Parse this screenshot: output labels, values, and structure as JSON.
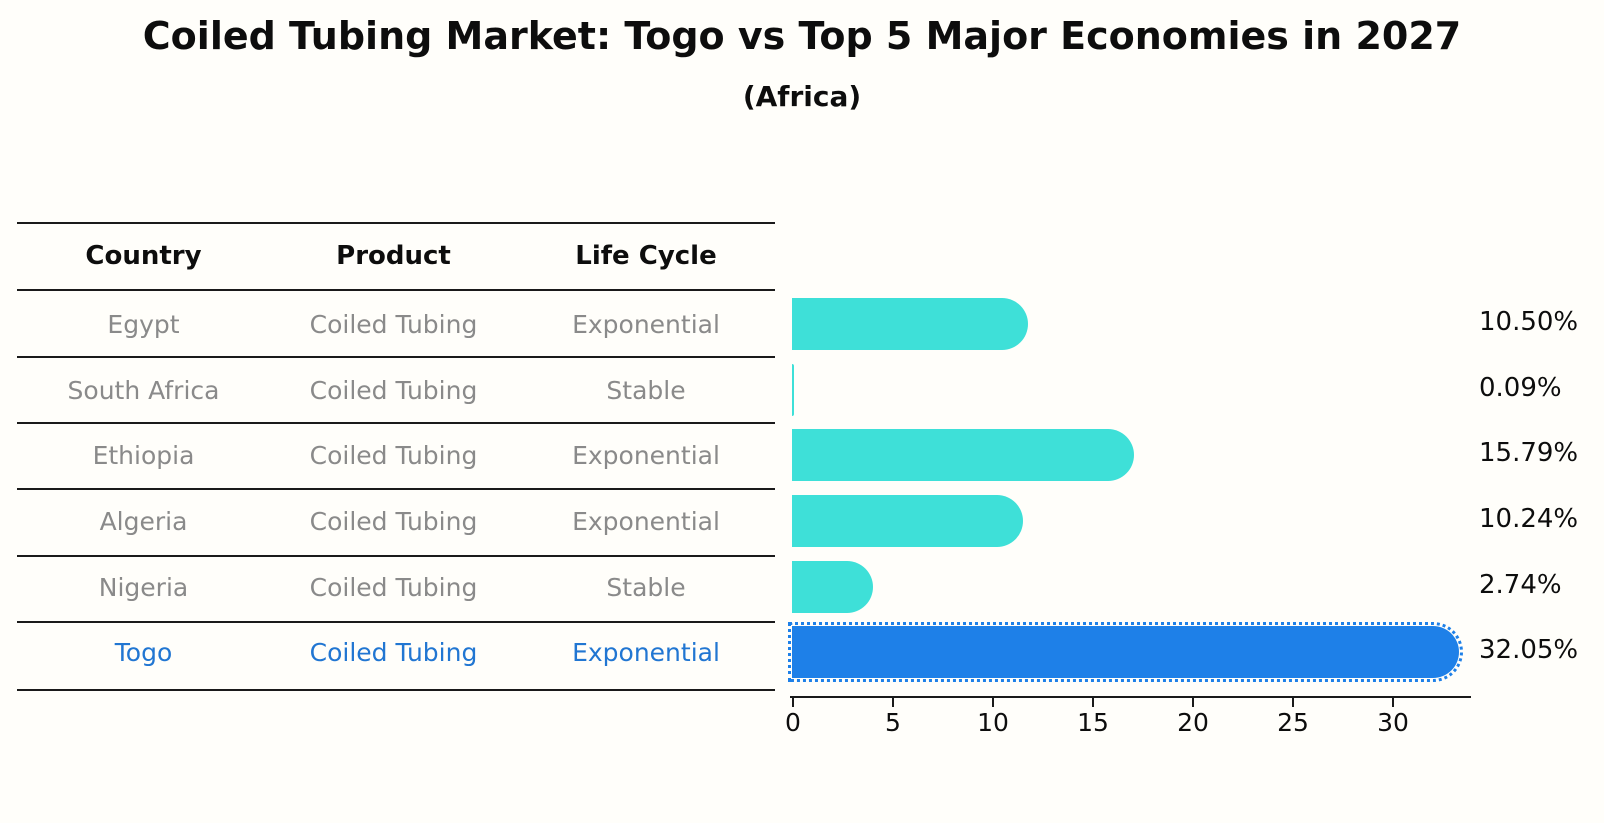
{
  "title": "Coiled Tubing Market: Togo vs Top 5 Major Economies in 2027",
  "subtitle": "(Africa)",
  "table": {
    "headers": [
      "Country",
      "Product",
      "Life Cycle"
    ],
    "rows": [
      {
        "country": "Egypt",
        "product": "Coiled Tubing",
        "life_cycle": "Exponential",
        "value_label": "10.50%",
        "highlight": false
      },
      {
        "country": "South Africa",
        "product": "Coiled Tubing",
        "life_cycle": "Stable",
        "value_label": "0.09%",
        "highlight": false
      },
      {
        "country": "Ethiopia",
        "product": "Coiled Tubing",
        "life_cycle": "Exponential",
        "value_label": "15.79%",
        "highlight": false
      },
      {
        "country": "Algeria",
        "product": "Coiled Tubing",
        "life_cycle": "Exponential",
        "value_label": "10.24%",
        "highlight": false
      },
      {
        "country": "Nigeria",
        "product": "Coiled Tubing",
        "life_cycle": "Stable",
        "value_label": "2.74%",
        "highlight": false
      },
      {
        "country": "Togo",
        "product": "Coiled Tubing",
        "life_cycle": "Exponential",
        "value_label": "32.05%",
        "highlight": true
      }
    ]
  },
  "chart_data": {
    "type": "bar",
    "orientation": "horizontal",
    "title": "Coiled Tubing Market: Togo vs Top 5 Major Economies in 2027",
    "subtitle": "(Africa)",
    "categories": [
      "Egypt",
      "South Africa",
      "Ethiopia",
      "Algeria",
      "Nigeria",
      "Togo"
    ],
    "values": [
      10.5,
      0.09,
      15.79,
      10.24,
      2.74,
      32.05
    ],
    "value_labels": [
      "10.50%",
      "0.09%",
      "15.79%",
      "10.24%",
      "2.74%",
      "32.05%"
    ],
    "x_ticks": [
      0,
      5,
      10,
      15,
      20,
      25,
      30
    ],
    "xlim": [
      0,
      33.9
    ],
    "grid": false,
    "legend": false,
    "bar_color": "#3EE0D8",
    "highlight_color": "#1E80E8",
    "highlight_index": 5,
    "highlight_text_color": "#2176d2",
    "row_text_color": "#8a8a8a",
    "axis_color": "#1a1a1a"
  }
}
